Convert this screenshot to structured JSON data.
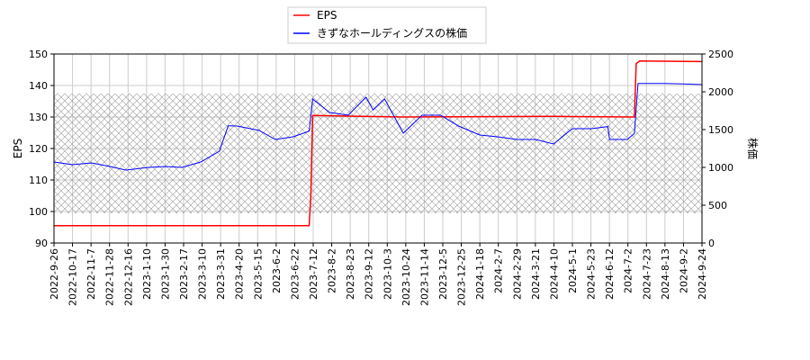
{
  "chart_data": {
    "type": "line",
    "xlabel": "",
    "ylabel": "EPS",
    "y2label": "株価",
    "ylim": [
      90,
      150
    ],
    "y2lim": [
      0,
      2500
    ],
    "yticks": [
      90,
      100,
      110,
      120,
      130,
      140,
      150
    ],
    "y2ticks": [
      0,
      500,
      1000,
      1500,
      2000,
      2500
    ],
    "grid": true,
    "legend_placement": "top-center",
    "xticks": [
      "2022-9-26",
      "2022-10-17",
      "2022-11-7",
      "2022-11-28",
      "2022-12-16",
      "2023-1-10",
      "2023-1-30",
      "2023-2-17",
      "2023-3-10",
      "2023-3-31",
      "2023-4-20",
      "2023-5-15",
      "2023-6-2",
      "2023-6-22",
      "2023-7-12",
      "2023-8-2",
      "2023-8-23",
      "2023-9-12",
      "2023-10-3",
      "2023-10-24",
      "2023-11-14",
      "2023-12-5",
      "2023-12-25",
      "2024-1-18",
      "2024-2-7",
      "2024-2-29",
      "2024-3-21",
      "2024-4-10",
      "2024-5-1",
      "2024-5-23",
      "2024-6-12",
      "2024-7-2",
      "2024-7-23",
      "2024-8-13",
      "2024-9-2",
      "2024-9-24"
    ],
    "series": [
      {
        "name": "EPS",
        "axis": "left",
        "color": "#ff0000",
        "points": [
          [
            "2022-09-26",
            95.5
          ],
          [
            "2023-07-10",
            95.5
          ],
          [
            "2023-07-12",
            105
          ],
          [
            "2023-07-14",
            130.5
          ],
          [
            "2023-10-24",
            130
          ],
          [
            "2024-04-10",
            130.2
          ],
          [
            "2024-07-10",
            130
          ],
          [
            "2024-07-12",
            147
          ],
          [
            "2024-07-16",
            147.8
          ],
          [
            "2024-09-24",
            147.6
          ]
        ]
      },
      {
        "name": "きずなホールディングスの株価",
        "axis": "right",
        "color": "#0000ff",
        "points": [
          [
            "2022-09-26",
            1071
          ],
          [
            "2022-10-17",
            1036
          ],
          [
            "2022-11-07",
            1060
          ],
          [
            "2022-11-28",
            1012
          ],
          [
            "2022-12-16",
            964
          ],
          [
            "2023-01-10",
            1000
          ],
          [
            "2023-01-30",
            1012
          ],
          [
            "2023-02-17",
            1000
          ],
          [
            "2023-03-10",
            1071
          ],
          [
            "2023-03-31",
            1214
          ],
          [
            "2023-04-10",
            1550
          ],
          [
            "2023-04-20",
            1548
          ],
          [
            "2023-05-15",
            1488
          ],
          [
            "2023-06-02",
            1369
          ],
          [
            "2023-06-22",
            1405
          ],
          [
            "2023-07-10",
            1480
          ],
          [
            "2023-07-14",
            1905
          ],
          [
            "2023-08-02",
            1726
          ],
          [
            "2023-08-23",
            1690
          ],
          [
            "2023-09-12",
            1929
          ],
          [
            "2023-09-20",
            1760
          ],
          [
            "2023-10-03",
            1905
          ],
          [
            "2023-10-24",
            1452
          ],
          [
            "2023-11-14",
            1690
          ],
          [
            "2023-12-05",
            1690
          ],
          [
            "2023-12-25",
            1548
          ],
          [
            "2024-01-18",
            1429
          ],
          [
            "2024-02-07",
            1405
          ],
          [
            "2024-02-29",
            1369
          ],
          [
            "2024-03-21",
            1369
          ],
          [
            "2024-04-10",
            1310
          ],
          [
            "2024-05-01",
            1512
          ],
          [
            "2024-05-23",
            1512
          ],
          [
            "2024-06-10",
            1540
          ],
          [
            "2024-06-12",
            1369
          ],
          [
            "2024-07-02",
            1369
          ],
          [
            "2024-07-10",
            1450
          ],
          [
            "2024-07-14",
            2110
          ],
          [
            "2024-08-13",
            2110
          ],
          [
            "2024-09-02",
            2105
          ],
          [
            "2024-09-24",
            2095
          ]
        ]
      }
    ]
  }
}
